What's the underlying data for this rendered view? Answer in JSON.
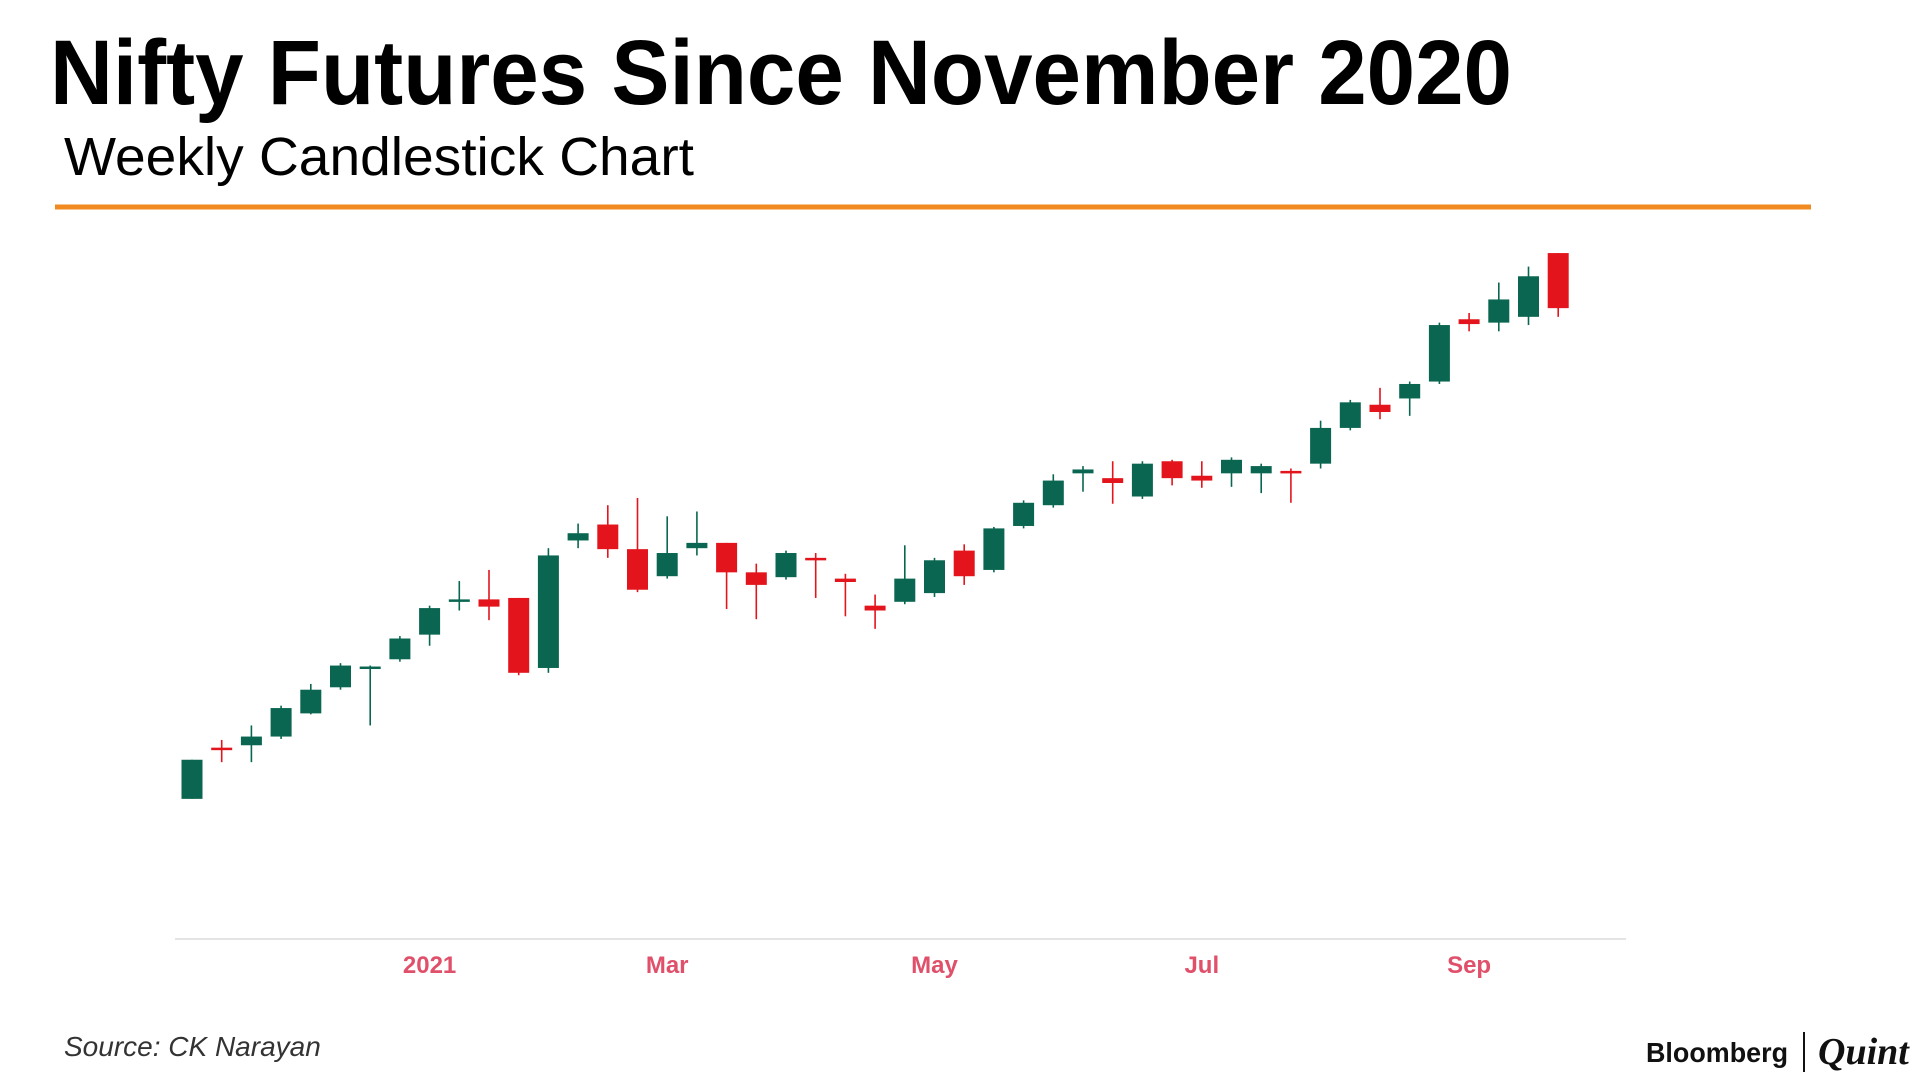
{
  "chart_data": {
    "type": "candlestick",
    "title": "Nifty Futures Since November 2020",
    "subtitle": "Weekly Candlestick Chart",
    "source": "Source: CK Narayan",
    "logo": [
      "Bloomberg",
      "Quint"
    ],
    "categories": [
      null,
      null,
      null,
      null,
      null,
      null,
      null,
      null,
      "2021",
      null,
      null,
      null,
      null,
      null,
      null,
      null,
      "Mar",
      null,
      null,
      null,
      null,
      null,
      null,
      null,
      null,
      "May",
      null,
      null,
      null,
      null,
      null,
      null,
      null,
      null,
      "Jul",
      null,
      null,
      null,
      null,
      null,
      null,
      null,
      null,
      "Sep",
      null,
      null,
      null
    ],
    "open": [
      12300,
      12830,
      12855,
      12945,
      13185,
      13455,
      13645,
      13745,
      14000,
      14340,
      14365,
      14380,
      13655,
      14975,
      15140,
      14885,
      14605,
      14895,
      14950,
      14645,
      14595,
      14795,
      14580,
      14300,
      14340,
      14430,
      14870,
      14670,
      15125,
      15340,
      15670,
      15620,
      15430,
      15795,
      15645,
      15670,
      15670,
      15695,
      15770,
      16140,
      16380,
      16445,
      16620,
      17265,
      17230,
      17290,
      17950
    ],
    "high": [
      12705,
      12910,
      13060,
      13265,
      13490,
      13705,
      13680,
      13985,
      14300,
      14555,
      14670,
      14380,
      14895,
      15150,
      15340,
      15415,
      15225,
      15275,
      14950,
      14735,
      14870,
      14845,
      14630,
      14415,
      14925,
      14795,
      14935,
      15115,
      15390,
      15660,
      15745,
      15795,
      15795,
      15810,
      15795,
      15835,
      15770,
      15720,
      16215,
      16430,
      16555,
      16620,
      17230,
      17330,
      17645,
      17810,
      17950
    ],
    "low": [
      12300,
      12680,
      12680,
      12920,
      13175,
      13430,
      13060,
      13720,
      13885,
      14250,
      14150,
      13580,
      13605,
      14895,
      14795,
      14440,
      14580,
      14820,
      14265,
      14160,
      14570,
      14380,
      14190,
      14060,
      14315,
      14390,
      14515,
      14645,
      15100,
      15315,
      15480,
      15355,
      15405,
      15545,
      15520,
      15530,
      15465,
      15365,
      15720,
      16115,
      16230,
      16265,
      16595,
      17140,
      17140,
      17205,
      17290
    ],
    "close": [
      12705,
      12805,
      12945,
      13240,
      13430,
      13680,
      13670,
      13960,
      14275,
      14365,
      14290,
      13605,
      14820,
      15050,
      14885,
      14465,
      14845,
      14950,
      14645,
      14515,
      14845,
      14785,
      14545,
      14250,
      14580,
      14770,
      14605,
      15100,
      15365,
      15595,
      15710,
      15570,
      15770,
      15620,
      15595,
      15810,
      15745,
      15670,
      16140,
      16405,
      16305,
      16595,
      17205,
      17215,
      17470,
      17710,
      17380
    ],
    "up_color": "#0a6650",
    "down_color": "#e3141b",
    "ylim": [
      10870,
      18220
    ],
    "grid": false
  }
}
